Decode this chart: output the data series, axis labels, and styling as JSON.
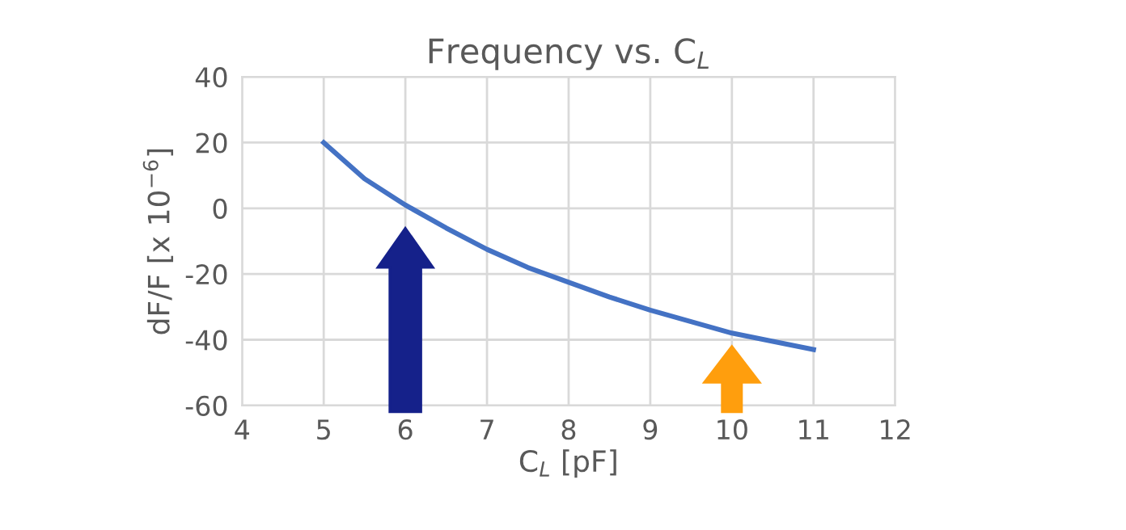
{
  "chart_data": {
    "type": "line",
    "title": "Frequency vs. C$_{L}$",
    "xlabel": "C$_{L}$ [pF]",
    "ylabel": "dF/F [x 10$^{−6}$]",
    "series": [
      {
        "color": "#4472c4",
        "x": [
          5,
          5.5,
          6,
          6.5,
          7,
          7.5,
          8,
          8.5,
          9,
          9.5,
          10,
          10.5,
          11
        ],
        "values": [
          20,
          9,
          1,
          -6,
          -12.5,
          -18,
          -22.5,
          -27,
          -31,
          -34.5,
          -38,
          -40.5,
          -43
        ]
      }
    ],
    "xlim": [
      4,
      12
    ],
    "xticks": [
      4,
      5,
      6,
      7,
      8,
      9,
      10,
      11,
      12
    ],
    "ylim": [
      -60,
      40
    ],
    "yticks": [
      -60,
      -40,
      -20,
      0,
      20,
      40
    ],
    "grid": true,
    "marker": "none",
    "line_style": "solid"
  }
}
